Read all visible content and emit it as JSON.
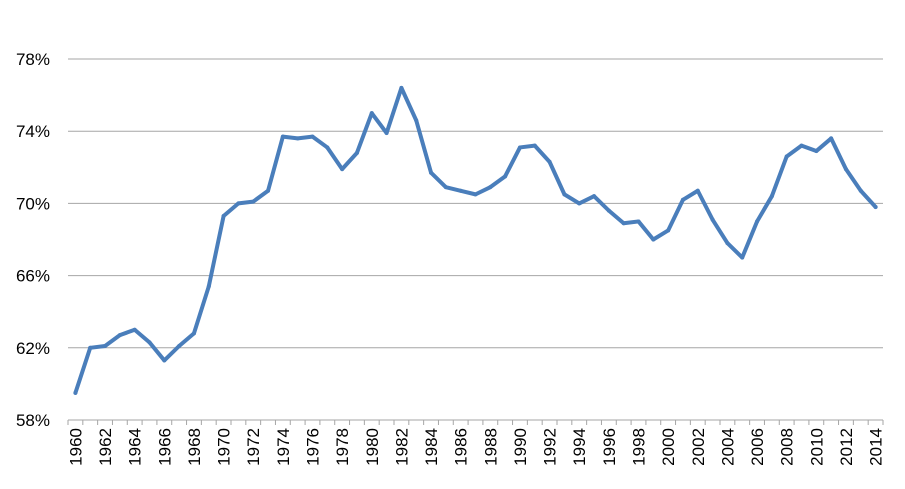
{
  "chart_data": {
    "type": "line",
    "title": "",
    "xlabel": "",
    "ylabel": "",
    "ylim": [
      58,
      80
    ],
    "y_ticks": [
      58,
      62,
      66,
      70,
      74,
      78
    ],
    "y_tick_labels": [
      "58%",
      "62%",
      "66%",
      "70%",
      "74%",
      "78%"
    ],
    "x_tick_labels": [
      "1960",
      "1962",
      "1964",
      "1966",
      "1968",
      "1970",
      "1972",
      "1974",
      "1976",
      "1978",
      "1980",
      "1982",
      "1984",
      "1986",
      "1988",
      "1990",
      "1992",
      "1994",
      "1996",
      "1998",
      "2000",
      "2002",
      "2004",
      "2006",
      "2008",
      "2010",
      "2012",
      "2014"
    ],
    "grid": "horizontal",
    "colors": {
      "line": "#4a7ebb",
      "grid": "#a6a6a6",
      "axis": "#a6a6a6"
    },
    "series": [
      {
        "x": [
          1960,
          1961,
          1962,
          1963,
          1964,
          1965,
          1966,
          1967,
          1968,
          1969,
          1970,
          1971,
          1972,
          1973,
          1974,
          1975,
          1976,
          1977,
          1978,
          1979,
          1980,
          1981,
          1982,
          1983,
          1984,
          1985,
          1986,
          1987,
          1988,
          1989,
          1990,
          1991,
          1992,
          1993,
          1994,
          1995,
          1996,
          1997,
          1998,
          1999,
          2000,
          2001,
          2002,
          2003,
          2004,
          2005,
          2006,
          2007,
          2008,
          2009,
          2010,
          2011,
          2012,
          2013,
          2014
        ],
        "values": [
          59.5,
          62.0,
          62.1,
          62.7,
          63.0,
          62.3,
          61.3,
          62.1,
          62.8,
          65.4,
          69.3,
          70.0,
          70.1,
          70.7,
          73.7,
          73.6,
          73.7,
          73.1,
          71.9,
          72.8,
          75.0,
          73.9,
          76.4,
          74.6,
          71.7,
          70.9,
          70.7,
          70.5,
          70.9,
          71.5,
          73.1,
          73.2,
          72.3,
          70.5,
          70.0,
          70.4,
          69.6,
          68.9,
          69.0,
          68.0,
          68.5,
          70.2,
          70.7,
          69.1,
          67.8,
          67.0,
          69.0,
          70.4,
          72.6,
          73.2,
          72.9,
          73.6,
          71.9,
          70.7,
          69.8
        ]
      }
    ]
  }
}
